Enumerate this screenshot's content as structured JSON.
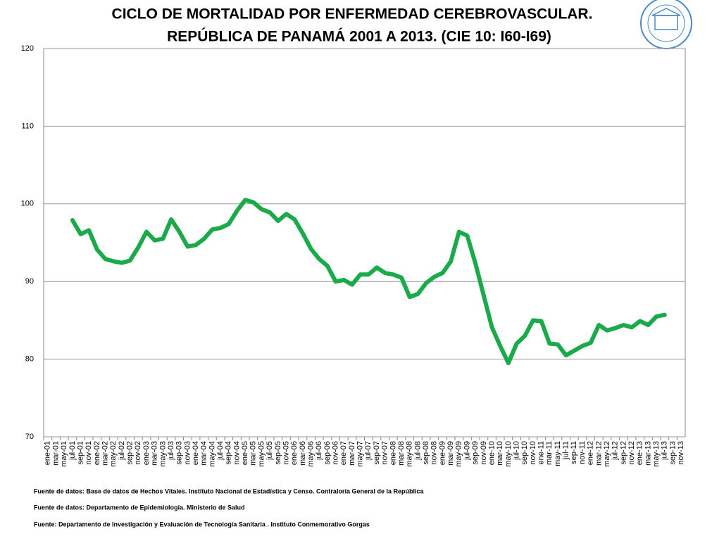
{
  "chart_data": {
    "type": "line",
    "title": [
      "CICLO DE MORTALIDAD POR ENFERMEDAD CEREBROVASCULAR.",
      "REPÚBLICA DE PANAMÁ 2001 A  2013. (CIE 10: I60-I69)"
    ],
    "categories": [
      "ene-01",
      "mar-01",
      "may-01",
      "jul-01",
      "sep-01",
      "nov-01",
      "ene-02",
      "mar-02",
      "may-02",
      "jul-02",
      "sep-02",
      "nov-02",
      "ene-03",
      "mar-03",
      "may-03",
      "jul-03",
      "sep-03",
      "nov-03",
      "ene-04",
      "mar-04",
      "may-04",
      "jul-04",
      "sep-04",
      "nov-04",
      "ene-05",
      "mar-05",
      "may-05",
      "jul-05",
      "sep-05",
      "nov-05",
      "ene-06",
      "mar-06",
      "may-06",
      "jul-06",
      "sep-06",
      "nov-06",
      "ene-07",
      "mar-07",
      "may-07",
      "jul-07",
      "sep-07",
      "nov-07",
      "ene-08",
      "mar-08",
      "may-08",
      "jul-08",
      "sep-08",
      "nov-08",
      "ene-09",
      "mar-09",
      "may-09",
      "jul-09",
      "sep-09",
      "nov-09",
      "ene-10",
      "mar-10",
      "may-10",
      "jul-10",
      "sep-10",
      "nov-10",
      "ene-11",
      "mar-11",
      "may-11",
      "jul-11",
      "sep-11",
      "nov-11",
      "ene-12",
      "mar-12",
      "may-12",
      "jul-12",
      "sep-12",
      "nov-12",
      "ene-13",
      "mar-13",
      "may-13",
      "jul-13",
      "sep-13",
      "nov-13"
    ],
    "series": [
      {
        "color": "#1aaa4a",
        "values": [
          null,
          null,
          null,
          97.9,
          96.1,
          96.6,
          94.1,
          92.9,
          92.6,
          92.4,
          92.7,
          94.4,
          96.4,
          95.3,
          95.5,
          98.0,
          96.4,
          94.5,
          94.7,
          95.5,
          96.7,
          96.9,
          97.4,
          99.1,
          100.5,
          100.2,
          99.3,
          98.9,
          97.8,
          98.7,
          98.0,
          96.2,
          94.2,
          92.9,
          92.0,
          90.0,
          90.2,
          89.6,
          90.9,
          90.9,
          91.8,
          91.1,
          90.9,
          90.5,
          88.0,
          88.4,
          89.8,
          90.6,
          91.1,
          92.6,
          96.4,
          95.9,
          92.3,
          88.2,
          84.1,
          81.7,
          79.5,
          82.0,
          83.0,
          85.0,
          84.9,
          82.0,
          81.9,
          80.5,
          81.1,
          81.7,
          82.1,
          84.4,
          83.7,
          84.0,
          84.4,
          84.1,
          84.9,
          84.4,
          85.5,
          85.7,
          null,
          null
        ]
      }
    ],
    "ylim": [
      70,
      120
    ],
    "yticks": [
      70,
      80,
      90,
      100,
      110,
      120
    ],
    "grid": true,
    "footnotes": [
      "Fuente de datos:  Base  de datos  de Hechos Vitales. Instituto Nacional  de Estadística  y Censo. Contraloría  General de la República",
      "Fuente de datos:  Departamento de Epidemiología.  Ministerio  de Salud",
      "Fuente: Departamento   de Investigación  y  Evaluación  de Tecnología Sanitaria  . Instituto   Conmemorativo Gorgas"
    ]
  }
}
